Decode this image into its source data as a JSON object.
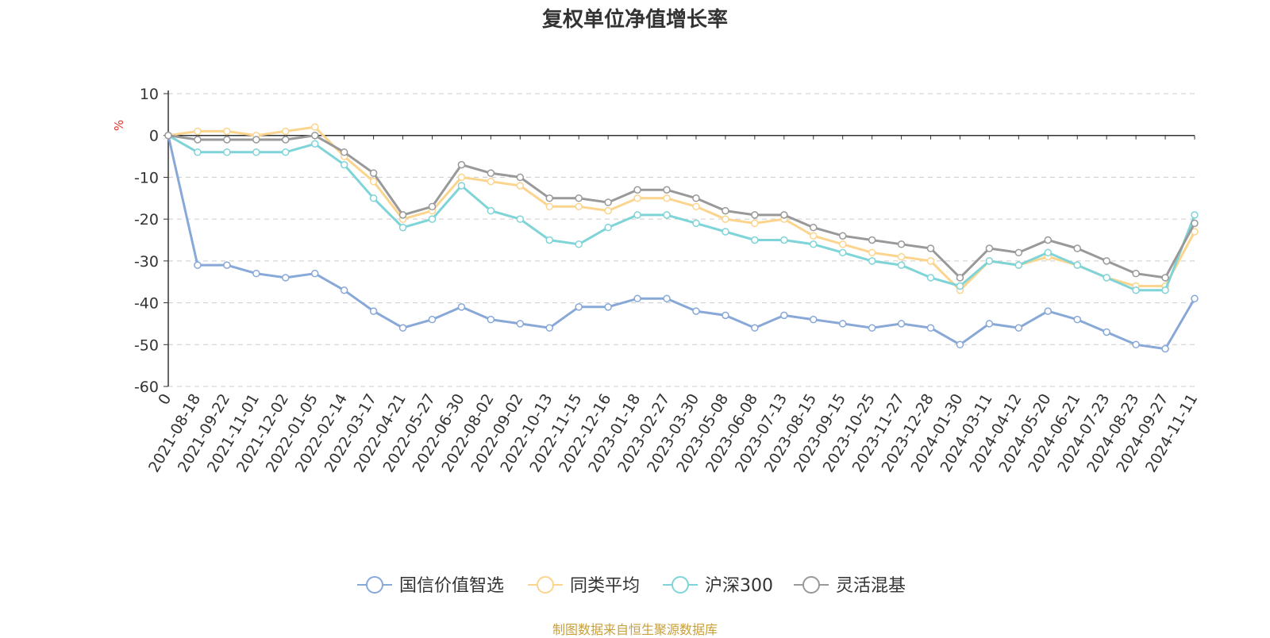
{
  "colors": {
    "series": [
      "#88a8d8",
      "#fbd48e",
      "#7fd4d8",
      "#999999"
    ],
    "axis": "#333333",
    "grid": "#cccccc",
    "ylabel": "#e0352b",
    "source": "#c8a03c"
  },
  "chart_data": {
    "type": "line",
    "title": "复权单位净值增长率",
    "ylabel": "%",
    "ylim": [
      -60,
      10
    ],
    "yticks": [
      10,
      0,
      -10,
      -20,
      -30,
      -40,
      -50,
      -60
    ],
    "grid": "horizontal-dashed",
    "legend_position": "bottom-center",
    "x_tick_labels": [
      "0",
      "2021-08-18",
      "2021-09-22",
      "2021-11-01",
      "2021-12-02",
      "2022-01-05",
      "2022-02-14",
      "2022-03-17",
      "2022-04-21",
      "2022-05-27",
      "2022-06-30",
      "2022-08-02",
      "2022-09-02",
      "2022-10-13",
      "2022-11-15",
      "2022-12-16",
      "2023-01-18",
      "2023-02-27",
      "2023-03-30",
      "2023-05-08",
      "2023-06-08",
      "2023-07-13",
      "2023-08-15",
      "2023-09-15",
      "2023-10-25",
      "2023-11-27",
      "2023-12-28",
      "2024-01-30",
      "2024-03-11",
      "2024-04-12",
      "2024-05-20",
      "2024-06-21",
      "2024-07-23",
      "2024-08-23",
      "2024-09-27",
      "2024-11-11"
    ],
    "series": [
      {
        "name": "国信价值智选",
        "values": [
          0,
          -31,
          -31,
          -33,
          -34,
          -33,
          -37,
          -42,
          -46,
          -44,
          -41,
          -44,
          -45,
          -46,
          -41,
          -41,
          -39,
          -39,
          -42,
          -43,
          -46,
          -43,
          -44,
          -45,
          -46,
          -45,
          -46,
          -50,
          -45,
          -46,
          -42,
          -44,
          -47,
          -50,
          -51,
          -39
        ]
      },
      {
        "name": "同类平均",
        "values": [
          0,
          1,
          1,
          0,
          1,
          2,
          -5,
          -11,
          -20,
          -18,
          -10,
          -11,
          -12,
          -17,
          -17,
          -18,
          -15,
          -15,
          -17,
          -20,
          -21,
          -20,
          -24,
          -26,
          -28,
          -29,
          -30,
          -37,
          -30,
          -31,
          -29,
          -31,
          -34,
          -36,
          -36,
          -23
        ]
      },
      {
        "name": "沪深300",
        "values": [
          0,
          -4,
          -4,
          -4,
          -4,
          -2,
          -7,
          -15,
          -22,
          -20,
          -12,
          -18,
          -20,
          -25,
          -26,
          -22,
          -19,
          -19,
          -21,
          -23,
          -25,
          -25,
          -26,
          -28,
          -30,
          -31,
          -34,
          -36,
          -30,
          -31,
          -28,
          -31,
          -34,
          -37,
          -37,
          -19
        ]
      },
      {
        "name": "灵活混基",
        "values": [
          0,
          -1,
          -1,
          -1,
          -1,
          0,
          -4,
          -9,
          -19,
          -17,
          -7,
          -9,
          -10,
          -15,
          -15,
          -16,
          -13,
          -13,
          -15,
          -18,
          -19,
          -19,
          -22,
          -24,
          -25,
          -26,
          -27,
          -34,
          -27,
          -28,
          -25,
          -27,
          -30,
          -33,
          -34,
          -21
        ]
      }
    ]
  },
  "source_note": "制图数据来自恒生聚源数据库"
}
